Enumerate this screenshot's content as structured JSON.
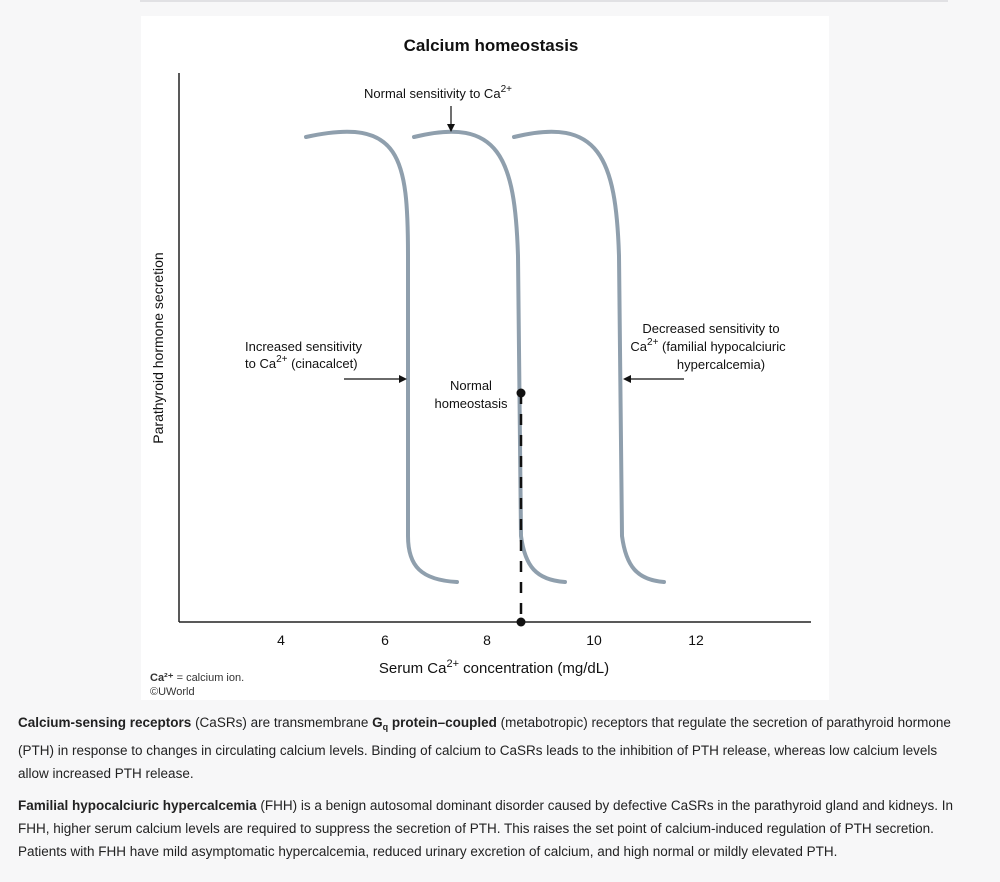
{
  "figure": {
    "title": "Calcium homeostasis",
    "ylabel": "Parathyroid hormone secretion",
    "xlabel_main": "Serum Ca",
    "xlabel_sup": "2+",
    "xlabel_tail": " concentration (mg/dL)",
    "x_ticks": [
      "4",
      "6",
      "8",
      "10",
      "12"
    ],
    "annotations": {
      "normal_sensitivity": {
        "text": "Normal sensitivity to Ca",
        "sup": "2+"
      },
      "increased": {
        "line1": "Increased sensitivity",
        "line2_pre": "to Ca",
        "line2_sup": "2+",
        "line2_post": " (cinacalcet)"
      },
      "decreased": {
        "line1": "Decreased sensitivity to",
        "line2_pre": "Ca",
        "line2_sup": "2+",
        "line2_post": " (familial hypocalciuric",
        "line3": "hypercalcemia)"
      },
      "normal_homeostasis": {
        "line1": "Normal",
        "line2": "homeostasis"
      }
    },
    "legend_symbol": "Ca²⁺",
    "legend_text": " = calcium ion.",
    "copyright": "©UWorld",
    "curve_color": "#8f9fad"
  },
  "chart_data": {
    "type": "line",
    "title": "Calcium homeostasis",
    "xlabel": "Serum Ca2+ concentration (mg/dL)",
    "ylabel": "Parathyroid hormone secretion",
    "x_ticks": [
      4,
      6,
      8,
      10,
      12
    ],
    "curves": [
      {
        "label": "Increased sensitivity to Ca2+ (cinacalcet)",
        "midpoint_x": 6.4
      },
      {
        "label": "Normal sensitivity to Ca2+",
        "midpoint_x": 8.5
      },
      {
        "label": "Decreased sensitivity to Ca2+ (familial hypocalciuric hypercalcemia)",
        "midpoint_x": 10.4
      }
    ],
    "normal_homeostasis_x": 8.7
  },
  "text": {
    "p1": {
      "b1": "Calcium-sensing receptors",
      "t1": " (CaSRs) are transmembrane ",
      "b2": "G",
      "b2_sub": "q",
      "b3": " protein–coupled",
      "t2": " (metabotropic) receptors that regulate the secretion of parathyroid hormone (PTH) in response to changes in circulating calcium levels.  Binding of calcium to CaSRs leads to the inhibition of PTH release, whereas low calcium levels allow increased PTH release."
    },
    "p2": {
      "b1": "Familial hypocalciuric hypercalcemia",
      "t1": " (FHH) is a benign autosomal dominant disorder caused by defective CaSRs in the parathyroid gland and kidneys.  In FHH, higher serum calcium levels are required to suppress the secretion of PTH.  This raises the set point of calcium-induced regulation of PTH secretion.  Patients with FHH have mild asymptomatic hypercalcemia, reduced urinary excretion of calcium, and high normal or mildly elevated PTH."
    }
  }
}
